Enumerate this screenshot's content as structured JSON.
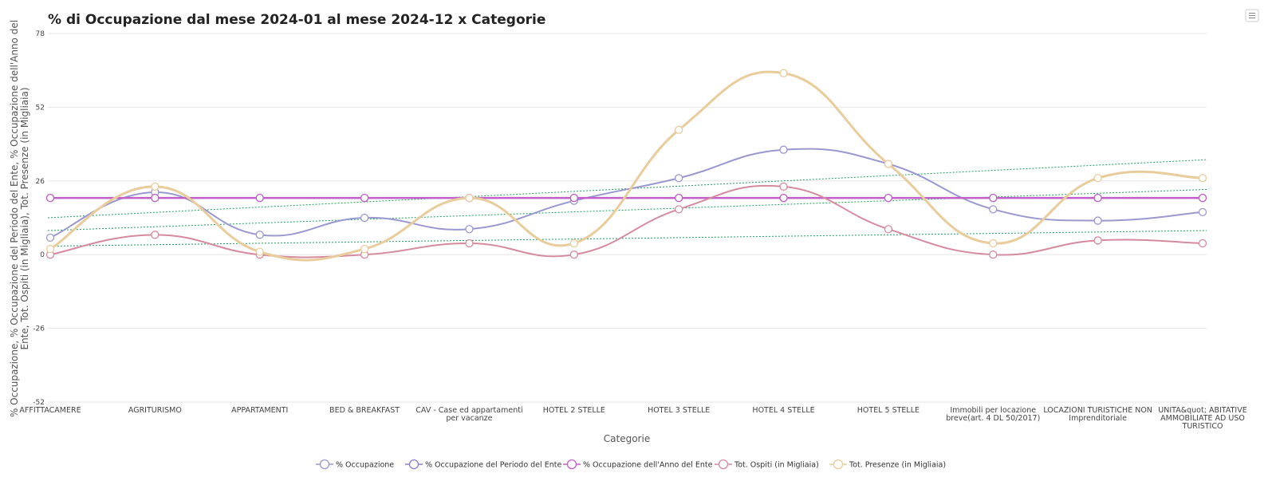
{
  "chart_data": {
    "type": "line",
    "title": "% di Occupazione dal mese 2024-01 al mese 2024-12 x Categorie",
    "xlabel": "Categorie",
    "ylabel_lines": [
      "% Occupazione, % Occupazione del Periodo del Ente, % Occupazione dell'Anno del",
      "Ente, Tot. Ospiti (in Migliaia), Tot. Presenze (in Migliaia)"
    ],
    "ylim": [
      -52,
      78
    ],
    "yticks": [
      78,
      52,
      26,
      0,
      -26,
      -52
    ],
    "ytick_labels": [
      "78",
      "52",
      "26",
      "0",
      "-26",
      "-52"
    ],
    "grid": true,
    "legend_position": "bottom-center",
    "categories": [
      "AFFITTACAMERE",
      "AGRITURISMO",
      "APPARTAMENTI",
      "BED & BREAKFAST",
      "CAV - Case ed appartamenti per vacanze",
      "HOTEL 2 STELLE",
      "HOTEL 3 STELLE",
      "HOTEL 4 STELLE",
      "HOTEL 5 STELLE",
      "Immobili per locazione breve(art. 4 DL 50/2017)",
      "LOCAZIONI TURISTICHE NON Imprenditoriale",
      "UNITA&quot; ABITATIVE AMMOBILIATE AD USO TURISTICO"
    ],
    "category_lines": [
      [
        "AFFITTACAMERE"
      ],
      [
        "AGRITURISMO"
      ],
      [
        "APPARTAMENTI"
      ],
      [
        "BED & BREAKFAST"
      ],
      [
        "CAV - Case ed appartamenti",
        "per vacanze"
      ],
      [
        "HOTEL 2 STELLE"
      ],
      [
        "HOTEL 3 STELLE"
      ],
      [
        "HOTEL 4 STELLE"
      ],
      [
        "HOTEL 5 STELLE"
      ],
      [
        "Immobili per locazione",
        "breve(art. 4 DL 50/2017)"
      ],
      [
        "LOCAZIONI TURISTICHE NON",
        "Imprenditoriale"
      ],
      [
        "UNITA&quot; ABITATIVE",
        "AMMOBILIATE AD USO",
        "TURISTICO"
      ]
    ],
    "series": [
      {
        "name": "% Occupazione",
        "color": "#9a98d0",
        "line_width": 2,
        "values": [
          6,
          22,
          7,
          13,
          9,
          19,
          27,
          37,
          32,
          16,
          12,
          15
        ],
        "trendline": {
          "start": 8.5,
          "end": 23,
          "color": "#1e9e5a"
        }
      },
      {
        "name": "% Occupazione del Periodo del Ente",
        "color": "#8a7fd0",
        "line_width": 2,
        "values": [
          20,
          20,
          20,
          20,
          20,
          20,
          20,
          20,
          20,
          20,
          20,
          20
        ],
        "trendline": null
      },
      {
        "name": "% Occupazione dell'Anno del Ente",
        "color": "#c060c8",
        "line_width": 2.5,
        "values": [
          20,
          20,
          20,
          20,
          20,
          20,
          20,
          20,
          20,
          20,
          20,
          20
        ],
        "trendline": null
      },
      {
        "name": "Tot. Ospiti (in Migliaia)",
        "color": "#d58aa0",
        "line_width": 2,
        "values": [
          0,
          7,
          0,
          0,
          4,
          0,
          16,
          24,
          9,
          0,
          5,
          4
        ],
        "trendline": {
          "start": 3,
          "end": 8.5,
          "color": "#1e9e5a"
        }
      },
      {
        "name": "Tot. Presenze (in Migliaia)",
        "color": "#e8cc9c",
        "line_width": 3,
        "values": [
          2,
          24,
          1,
          2,
          20,
          4,
          44,
          64,
          32,
          4,
          27,
          27
        ],
        "trendline": {
          "start": 13,
          "end": 33.5,
          "color": "#1e9e5a"
        }
      }
    ]
  }
}
